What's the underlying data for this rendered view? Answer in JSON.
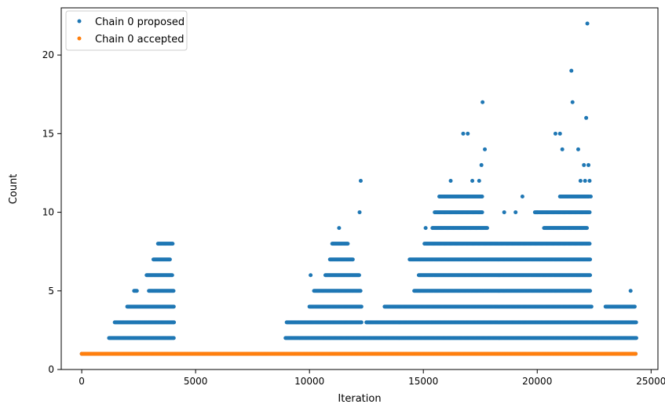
{
  "chart_data": {
    "type": "scatter",
    "xlabel": "Iteration",
    "ylabel": "Count",
    "xlim": [
      -900,
      25300
    ],
    "ylim": [
      0,
      23
    ],
    "xticks": [
      0,
      5000,
      10000,
      15000,
      20000,
      25000
    ],
    "yticks": [
      0,
      5,
      10,
      15,
      20
    ],
    "xtick_labels": [
      "0",
      "5000",
      "10000",
      "15000",
      "20000",
      "25000"
    ],
    "ytick_labels": [
      "0",
      "5",
      "10",
      "15",
      "20"
    ],
    "grid": false,
    "legend_position": "top-left",
    "series": [
      {
        "name": "Chain 0 proposed",
        "color": "#1f77b4",
        "value_bands": [
          {
            "y": 1,
            "x_ranges": [
              [
                0,
                24350
              ]
            ]
          },
          {
            "y": 2,
            "x_ranges": [
              [
                1200,
                4050
              ],
              [
                8950,
                24350
              ]
            ]
          },
          {
            "y": 3,
            "x_ranges": [
              [
                1450,
                4050
              ],
              [
                9000,
                12300
              ],
              [
                12500,
                24350
              ]
            ]
          },
          {
            "y": 4,
            "x_ranges": [
              [
                2000,
                4050
              ],
              [
                10000,
                12300
              ],
              [
                13300,
                22400
              ],
              [
                23000,
                24300
              ]
            ]
          },
          {
            "y": 5,
            "x_ranges": [
              [
                2300,
                2450
              ],
              [
                2950,
                4050
              ],
              [
                10200,
                12250
              ],
              [
                14600,
                22350
              ]
            ]
          },
          {
            "y": 6,
            "x_ranges": [
              [
                2850,
                4000
              ],
              [
                10700,
                12200
              ],
              [
                14800,
                22350
              ]
            ]
          },
          {
            "y": 7,
            "x_ranges": [
              [
                3150,
                3900
              ],
              [
                10900,
                11900
              ],
              [
                14400,
                22350
              ]
            ]
          },
          {
            "y": 8,
            "x_ranges": [
              [
                3350,
                4000
              ],
              [
                11000,
                11700
              ],
              [
                15100,
                22300
              ]
            ]
          },
          {
            "y": 9,
            "x_ranges": [
              [
                15400,
                17800
              ],
              [
                20300,
                22200
              ]
            ]
          },
          {
            "y": 10,
            "x_ranges": [
              [
                15500,
                17600
              ],
              [
                19900,
                22300
              ]
            ]
          },
          {
            "y": 11,
            "x_ranges": [
              [
                15700,
                17600
              ],
              [
                21000,
                22300
              ]
            ]
          }
        ],
        "points": [
          [
            10050,
            6
          ],
          [
            11300,
            9
          ],
          [
            12200,
            10
          ],
          [
            12250,
            12
          ],
          [
            16200,
            12
          ],
          [
            17150,
            12
          ],
          [
            17450,
            12
          ],
          [
            17550,
            13
          ],
          [
            17600,
            17
          ],
          [
            17700,
            14
          ],
          [
            16750,
            15
          ],
          [
            16950,
            15
          ],
          [
            20800,
            15
          ],
          [
            21000,
            15
          ],
          [
            21100,
            14
          ],
          [
            21500,
            19
          ],
          [
            21550,
            17
          ],
          [
            21800,
            14
          ],
          [
            21900,
            12
          ],
          [
            22050,
            13
          ],
          [
            22100,
            12
          ],
          [
            22150,
            16
          ],
          [
            22200,
            22
          ],
          [
            22250,
            13
          ],
          [
            22300,
            12
          ],
          [
            22350,
            11
          ],
          [
            24100,
            5
          ],
          [
            15100,
            9
          ],
          [
            15050,
            8
          ],
          [
            19050,
            10
          ],
          [
            18550,
            10
          ],
          [
            19350,
            11
          ],
          [
            20000,
            10
          ]
        ]
      },
      {
        "name": "Chain 0 accepted",
        "color": "#ff7f0e",
        "value_bands": [
          {
            "y": 1,
            "x_ranges": [
              [
                0,
                24350
              ]
            ]
          }
        ],
        "points": []
      }
    ]
  }
}
